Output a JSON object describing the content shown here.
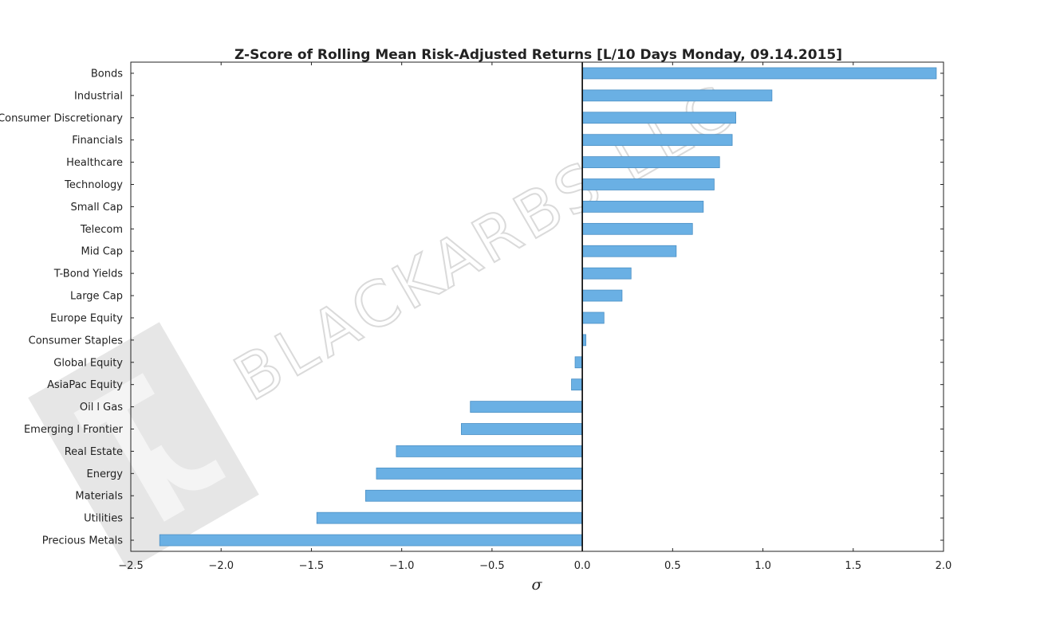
{
  "watermark": {
    "text": "BLACKARBS LLC",
    "logo": "blackarbs-logo-icon"
  },
  "chart_data": {
    "type": "bar",
    "orientation": "horizontal",
    "title": "Z-Score of Rolling Mean Risk-Adjusted Returns [L/10 Days Monday, 09.14.2015]",
    "xlabel": "σ",
    "ylabel": "",
    "xlim": [
      -2.5,
      2.0
    ],
    "xticks": [
      -2.5,
      -2.0,
      -1.5,
      -1.0,
      -0.5,
      0.0,
      0.5,
      1.0,
      1.5,
      2.0
    ],
    "xtick_labels": [
      "−2.5",
      "−2.0",
      "−1.5",
      "−1.0",
      "−0.5",
      "0.0",
      "0.5",
      "1.0",
      "1.5",
      "2.0"
    ],
    "grid": false,
    "legend": "none",
    "bar_color": "#6ab0e4",
    "bar_edge_color": "#4a8fc4",
    "categories": [
      "Bonds",
      "Industrial",
      "Consumer Discretionary",
      "Financials",
      "Healthcare",
      "Technology",
      "Small Cap",
      "Telecom",
      "Mid Cap",
      "T-Bond Yields",
      "Large Cap",
      "Europe Equity",
      "Consumer Staples",
      "Global Equity",
      "AsiaPac Equity",
      "Oil l Gas",
      "Emerging l Frontier",
      "Real Estate",
      "Energy",
      "Materials",
      "Utilities",
      "Precious Metals"
    ],
    "values": [
      1.96,
      1.05,
      0.85,
      0.83,
      0.76,
      0.73,
      0.67,
      0.61,
      0.52,
      0.27,
      0.22,
      0.12,
      0.02,
      -0.04,
      -0.06,
      -0.62,
      -0.67,
      -1.03,
      -1.14,
      -1.2,
      -1.47,
      -2.34
    ]
  }
}
